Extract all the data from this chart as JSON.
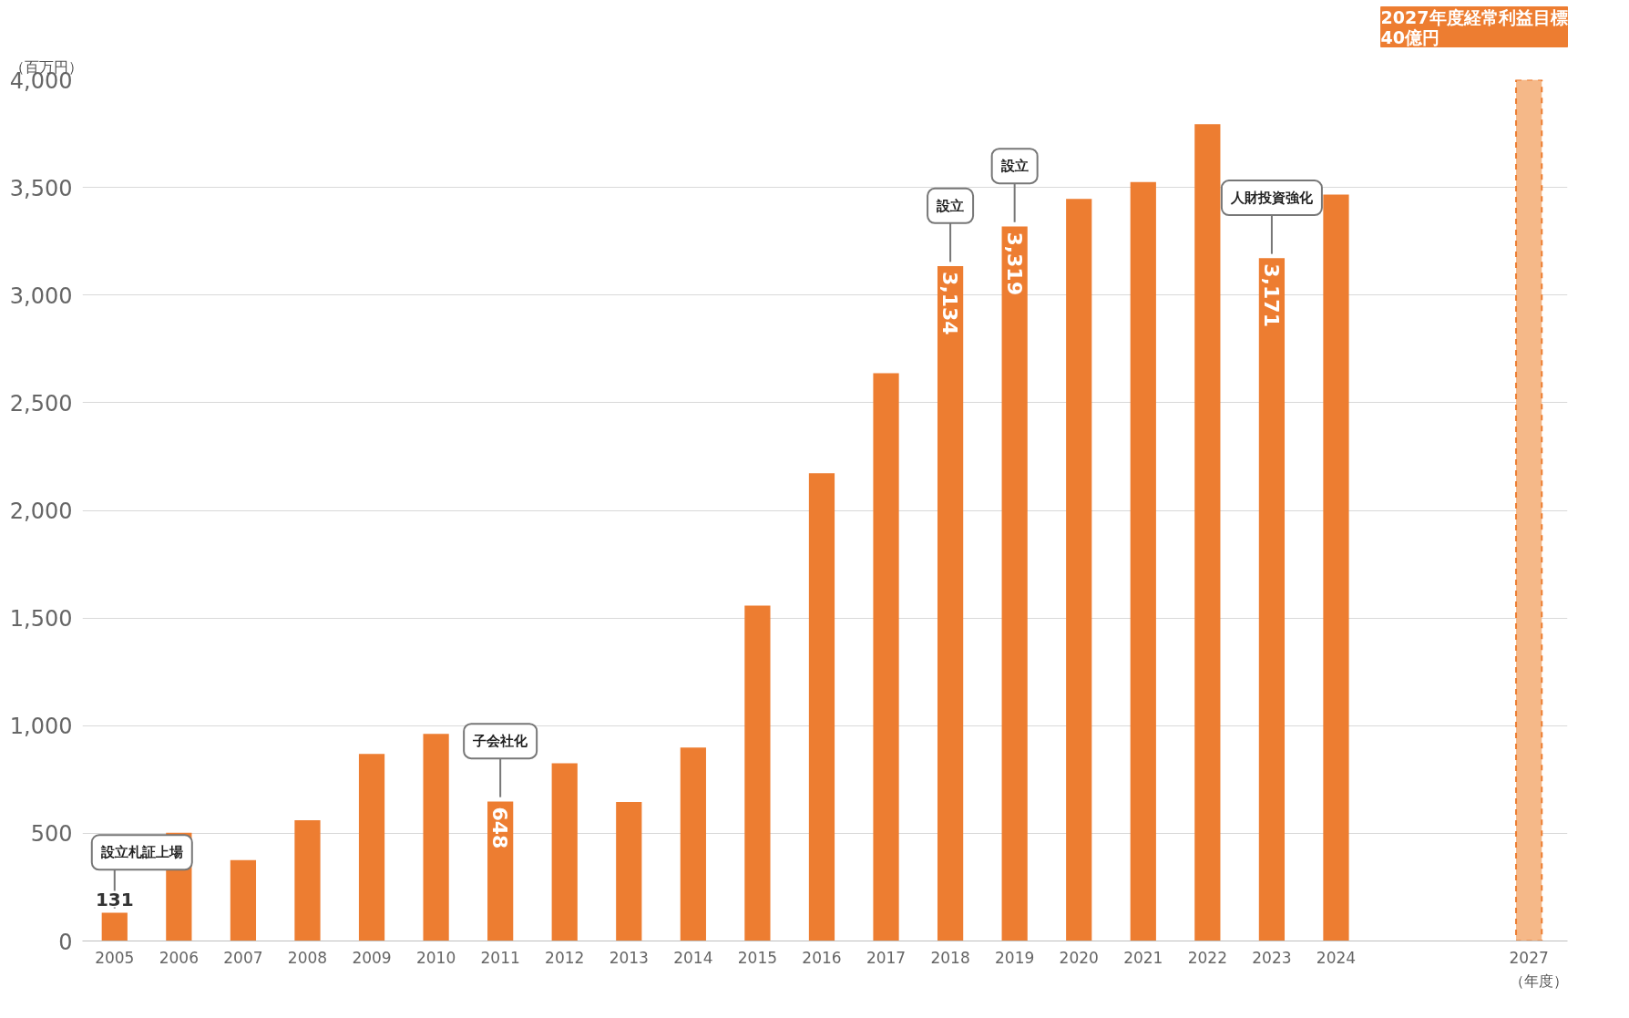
{
  "chart_data": {
    "type": "bar",
    "ylabel": "（百万円）",
    "xlabel": "（年度）",
    "xlim": [
      2004.5,
      2027.6
    ],
    "xticks": [
      2005,
      2006,
      2007,
      2008,
      2009,
      2010,
      2011,
      2012,
      2013,
      2014,
      2015,
      2016,
      2017,
      2018,
      2019,
      2020,
      2021,
      2022,
      2023,
      2024,
      2027
    ],
    "ylim": [
      0,
      4000
    ],
    "yticks": [
      0,
      500,
      {
        "value": 1000,
        "label": "1,000"
      },
      {
        "value": 1500,
        "label": "1,500"
      },
      {
        "value": 2000,
        "label": "2,000"
      },
      {
        "value": 2500,
        "label": "2,500"
      },
      {
        "value": 3000,
        "label": "3,000"
      },
      {
        "value": 3500,
        "label": "3,500"
      },
      {
        "value": 4000,
        "label": "4,000"
      }
    ],
    "grid": "y",
    "series": [
      {
        "color": "#ed7d31",
        "x": [
          2005,
          2006,
          2007,
          2008,
          2009,
          2010,
          2011,
          2012,
          2013,
          2014,
          2015,
          2016,
          2017,
          2018,
          2019,
          2020,
          2021,
          2022,
          2023,
          2024
        ],
        "values": [
          131,
          503,
          376,
          561,
          869,
          962,
          648,
          825,
          645,
          898,
          1558,
          2173,
          2637,
          3134,
          3319,
          3447,
          3525,
          3794,
          3171,
          3467
        ],
        "value_labels": [
          "131",
          null,
          null,
          null,
          null,
          null,
          "648",
          null,
          null,
          null,
          null,
          null,
          null,
          "3,134",
          "3,319",
          null,
          null,
          null,
          "3,171",
          null
        ]
      },
      {
        "name": "2027年度経常利益目標\n40億円",
        "color": "#f5b888",
        "line_style": "dashed",
        "x": [
          2027
        ],
        "values": [
          4000
        ]
      }
    ],
    "annotations": [
      {
        "text": "設立札証上場",
        "x": 2005,
        "y": 131
      },
      {
        "text": "子会社化",
        "x": 2011,
        "y": 648
      },
      {
        "text": "設立",
        "x": 2018,
        "y": 3134
      },
      {
        "text": "設立",
        "x": 2019,
        "y": 3319
      },
      {
        "text": "人財投資強化",
        "x": 2023,
        "y": 3171
      }
    ]
  }
}
